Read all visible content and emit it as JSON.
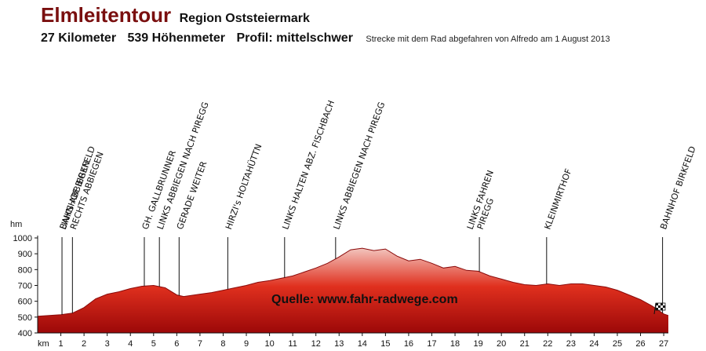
{
  "header": {
    "title": "Elmleitentour",
    "region": "Region Oststeiermark",
    "distance": "27 Kilometer",
    "ascent": "539 Höhenmeter",
    "profile": "Profil: mittelschwer",
    "note": "Strecke mit dem Rad abgefahren von Alfredo am 1 August 2013"
  },
  "chart_data": {
    "type": "area",
    "y_unit_label": "hm",
    "x_unit_label": "km",
    "xlim": [
      0,
      27.2
    ],
    "ylim": [
      400,
      1000
    ],
    "y_ticks": [
      1000,
      900,
      800,
      700,
      600,
      500,
      400
    ],
    "x_ticks": [
      1,
      2,
      3,
      4,
      5,
      6,
      7,
      8,
      9,
      10,
      11,
      12,
      13,
      14,
      15,
      16,
      17,
      18,
      19,
      20,
      21,
      22,
      23,
      24,
      25,
      26,
      27
    ],
    "grid": false,
    "source_label": "Quelle: www.fahr-radwege.com",
    "fill_colors": {
      "top": "#f2c4bd",
      "mid": "#e0301e",
      "bottom": "#9c0808"
    },
    "series": [
      {
        "x": [
          0,
          0.5,
          1,
          1.5,
          2,
          2.5,
          3,
          3.5,
          4,
          4.5,
          5,
          5.5,
          6,
          6.3,
          7,
          7.5,
          8,
          8.5,
          9,
          9.5,
          10,
          10.5,
          11,
          11.5,
          12,
          12.5,
          13,
          13.5,
          14,
          14.5,
          15,
          15.5,
          16,
          16.5,
          17,
          17.5,
          18,
          18.5,
          19,
          19.5,
          20,
          20.5,
          21,
          21.5,
          22,
          22.5,
          23,
          23.5,
          24,
          24.5,
          25,
          25.5,
          26,
          26.5,
          27,
          27.2
        ],
        "y": [
          505,
          510,
          515,
          525,
          560,
          615,
          645,
          660,
          680,
          695,
          700,
          685,
          640,
          630,
          645,
          655,
          670,
          685,
          700,
          720,
          730,
          745,
          760,
          785,
          810,
          840,
          880,
          925,
          935,
          920,
          930,
          885,
          855,
          865,
          840,
          810,
          820,
          795,
          790,
          760,
          740,
          720,
          705,
          700,
          710,
          700,
          710,
          710,
          700,
          690,
          670,
          640,
          610,
          570,
          520,
          510
        ]
      }
    ],
    "waypoints": [
      {
        "km": 1.05,
        "labels": [
          "BAHNHOF BIRKFELD"
        ]
      },
      {
        "km": 1.5,
        "labels": [
          "LINKS ABBIEGEN",
          "RECHTS ABBIEGEN"
        ]
      },
      {
        "km": 4.6,
        "labels": [
          "GH. GALLBRUNNER"
        ]
      },
      {
        "km": 5.25,
        "labels": [
          "LINKS ABBIEGEN NACH PIREGG"
        ]
      },
      {
        "km": 6.1,
        "labels": [
          "GERADE WEITER"
        ]
      },
      {
        "km": 8.2,
        "labels": [
          "HIRZI's HOLTAHÜTTN"
        ]
      },
      {
        "km": 10.65,
        "labels": [
          "LINKS HALTEN ABZ. FISCHBACH"
        ]
      },
      {
        "km": 12.85,
        "labels": [
          "LINKS ABBIEGEN NACH PIREGG"
        ]
      },
      {
        "km": 19.05,
        "labels": [
          "LINKS FAHREN",
          "PIREGG"
        ]
      },
      {
        "km": 21.95,
        "labels": [
          "KLEINMIRTHOF"
        ]
      },
      {
        "km": 26.95,
        "labels": [
          "BAHNHOF BIRKFELD"
        ]
      }
    ]
  }
}
